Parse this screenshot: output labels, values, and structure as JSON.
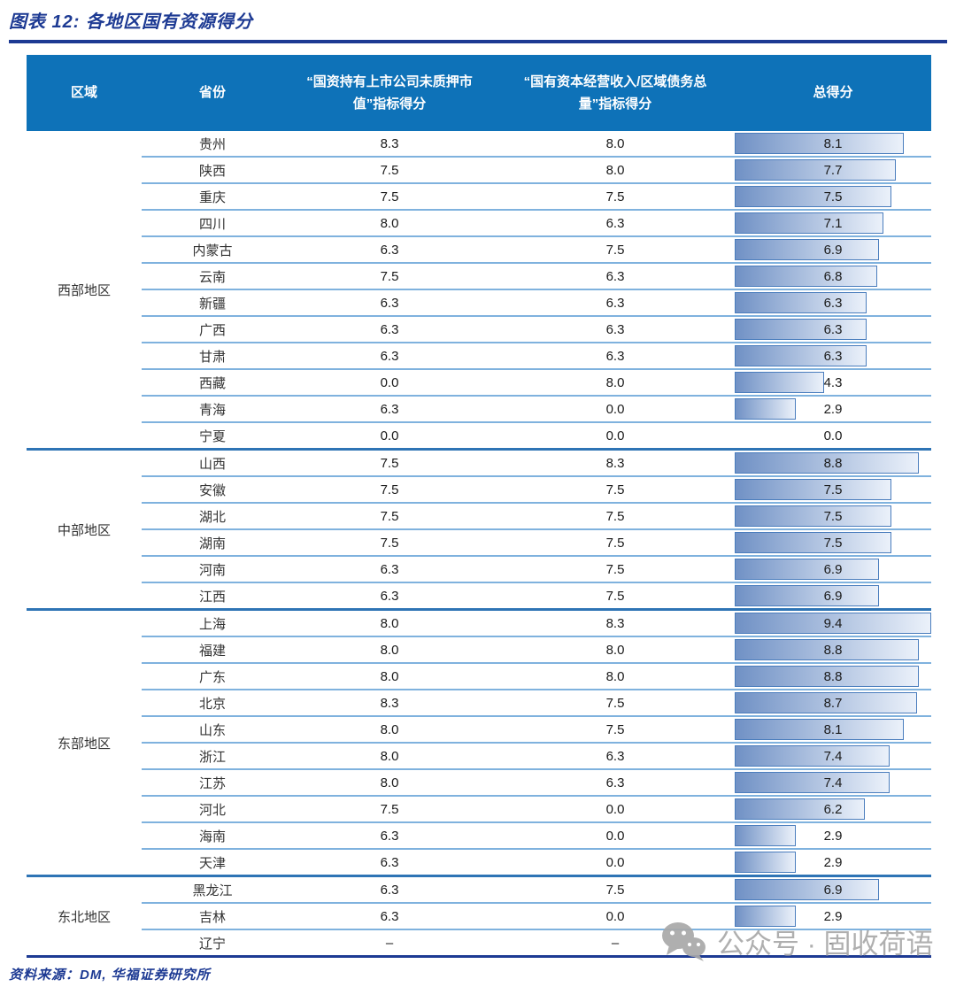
{
  "page": {
    "title": "图表 12: 各地区国有资源得分",
    "source_note": "资料来源：DM, 华福证券研究所",
    "watermark": {
      "icon": "wechat-icon",
      "text": "公众号 · 固收荷语"
    }
  },
  "chart_data": {
    "type": "table",
    "title": "图表 12: 各地区国有资源得分",
    "columns": [
      {
        "key": "region",
        "label": "区域"
      },
      {
        "key": "province",
        "label": "省份"
      },
      {
        "key": "pledge",
        "label": "“国资持有上市公司未质押市值”指标得分"
      },
      {
        "key": "income",
        "label": "“国有资本经营收入/区域债务总量”指标得分"
      },
      {
        "key": "total",
        "label": "总得分"
      }
    ],
    "databar": {
      "column": "总得分",
      "max": 9.4,
      "min": 0
    },
    "regions": [
      {
        "name": "西部地区",
        "rows": [
          [
            "贵州",
            "8.3",
            "8.0",
            "8.1"
          ],
          [
            "陕西",
            "7.5",
            "8.0",
            "7.7"
          ],
          [
            "重庆",
            "7.5",
            "7.5",
            "7.5"
          ],
          [
            "四川",
            "8.0",
            "6.3",
            "7.1"
          ],
          [
            "内蒙古",
            "6.3",
            "7.5",
            "6.9"
          ],
          [
            "云南",
            "7.5",
            "6.3",
            "6.8"
          ],
          [
            "新疆",
            "6.3",
            "6.3",
            "6.3"
          ],
          [
            "广西",
            "6.3",
            "6.3",
            "6.3"
          ],
          [
            "甘肃",
            "6.3",
            "6.3",
            "6.3"
          ],
          [
            "西藏",
            "0.0",
            "8.0",
            "4.3"
          ],
          [
            "青海",
            "6.3",
            "0.0",
            "2.9"
          ],
          [
            "宁夏",
            "0.0",
            "0.0",
            "0.0"
          ]
        ]
      },
      {
        "name": "中部地区",
        "rows": [
          [
            "山西",
            "7.5",
            "8.3",
            "8.8"
          ],
          [
            "安徽",
            "7.5",
            "7.5",
            "7.5"
          ],
          [
            "湖北",
            "7.5",
            "7.5",
            "7.5"
          ],
          [
            "湖南",
            "7.5",
            "7.5",
            "7.5"
          ],
          [
            "河南",
            "6.3",
            "7.5",
            "6.9"
          ],
          [
            "江西",
            "6.3",
            "7.5",
            "6.9"
          ]
        ]
      },
      {
        "name": "东部地区",
        "rows": [
          [
            "上海",
            "8.0",
            "8.3",
            "9.4"
          ],
          [
            "福建",
            "8.0",
            "8.0",
            "8.8"
          ],
          [
            "广东",
            "8.0",
            "8.0",
            "8.8"
          ],
          [
            "北京",
            "8.3",
            "7.5",
            "8.7"
          ],
          [
            "山东",
            "8.0",
            "7.5",
            "8.1"
          ],
          [
            "浙江",
            "8.0",
            "6.3",
            "7.4"
          ],
          [
            "江苏",
            "8.0",
            "6.3",
            "7.4"
          ],
          [
            "河北",
            "7.5",
            "0.0",
            "6.2"
          ],
          [
            "海南",
            "6.3",
            "0.0",
            "2.9"
          ],
          [
            "天津",
            "6.3",
            "0.0",
            "2.9"
          ]
        ]
      },
      {
        "name": "东北地区",
        "rows": [
          [
            "黑龙江",
            "6.3",
            "7.5",
            "6.9"
          ],
          [
            "吉林",
            "6.3",
            "0.0",
            "2.9"
          ],
          [
            "辽宁",
            "–",
            "–",
            "–"
          ]
        ]
      }
    ]
  },
  "colors": {
    "title-navy": "#1d3a93",
    "header-bg": "#0e72b8",
    "header-text": "#ffffff",
    "row-line": "#7fb2de",
    "region-line": "#2e74b5",
    "table-end-line": "#1d3a93",
    "bar-border": "#4a7dbd",
    "bar-start": "#7091c5",
    "bar-end": "#ebf1fa",
    "cell-text": "#1a1a1a",
    "watermark-gray": "#a9a9a9"
  }
}
